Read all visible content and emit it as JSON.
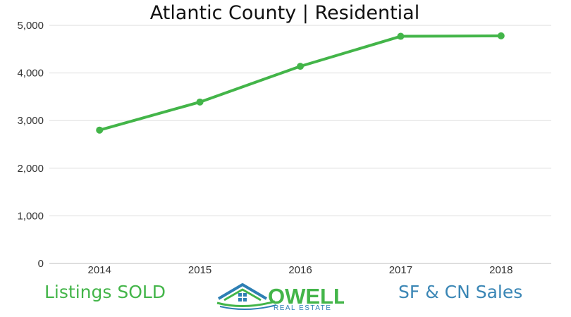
{
  "chart_data": {
    "type": "line",
    "title": "Atlantic County | Residential",
    "xlabel": "",
    "ylabel": "",
    "categories": [
      "2014",
      "2015",
      "2016",
      "2017",
      "2018"
    ],
    "values": [
      2800,
      3390,
      4140,
      4770,
      4780
    ],
    "ylim": [
      0,
      5000
    ],
    "yticks": [
      "0",
      "1,000",
      "2,000",
      "3,000",
      "4,000",
      "5,000"
    ],
    "ytick_values": [
      0,
      1000,
      2000,
      3000,
      4000,
      5000
    ],
    "grid": true,
    "legend": "none",
    "line_color": "#43b549"
  },
  "captions": {
    "left": "Listings SOLD",
    "left_color": "#43b549",
    "right": "SF & CN Sales",
    "right_color": "#3a86b5"
  },
  "logo": {
    "word": "OWELL",
    "sub": "REAL ESTATE",
    "green": "#43b549",
    "blue": "#2e7fb4"
  }
}
